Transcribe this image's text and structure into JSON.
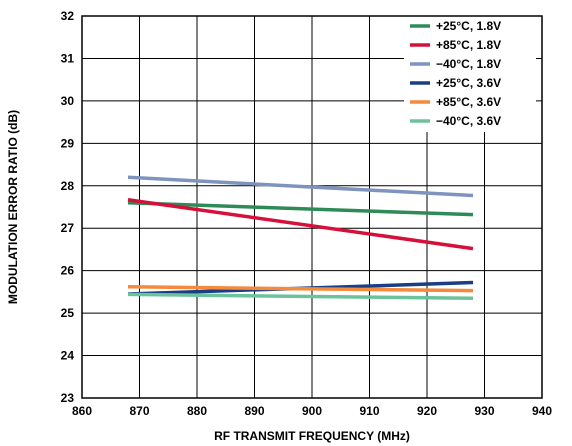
{
  "chart_data": {
    "type": "line",
    "title": "",
    "xlabel": "RF TRANSMIT FREQUENCY (MHz)",
    "ylabel": "MODULATION ERROR RATIO (dB)",
    "xlim": [
      860,
      940
    ],
    "ylim": [
      23,
      32
    ],
    "xticks": [
      860,
      870,
      880,
      890,
      900,
      910,
      920,
      930,
      940
    ],
    "yticks": [
      23,
      24,
      25,
      26,
      27,
      28,
      29,
      30,
      31,
      32
    ],
    "grid": true,
    "legend_position": "top-right",
    "series": [
      {
        "name": "+25°C, 1.8V",
        "color": "#2e8b57",
        "x": [
          868,
          928
        ],
        "y": [
          27.6,
          27.32
        ]
      },
      {
        "name": "+85°C, 1.8V",
        "color": "#d5103a",
        "x": [
          868,
          928
        ],
        "y": [
          27.67,
          26.52
        ]
      },
      {
        "name": "−40°C, 1.8V",
        "color": "#7e93bd",
        "x": [
          868,
          928
        ],
        "y": [
          28.2,
          27.77
        ]
      },
      {
        "name": "+25°C, 3.6V",
        "color": "#1a3e84",
        "x": [
          868,
          928
        ],
        "y": [
          25.45,
          25.72
        ]
      },
      {
        "name": "+85°C, 3.6V",
        "color": "#f58a3c",
        "x": [
          868,
          928
        ],
        "y": [
          25.62,
          25.53
        ]
      },
      {
        "name": "−40°C, 3.6V",
        "color": "#6cc39b",
        "x": [
          868,
          928
        ],
        "y": [
          25.44,
          25.35
        ]
      }
    ]
  }
}
